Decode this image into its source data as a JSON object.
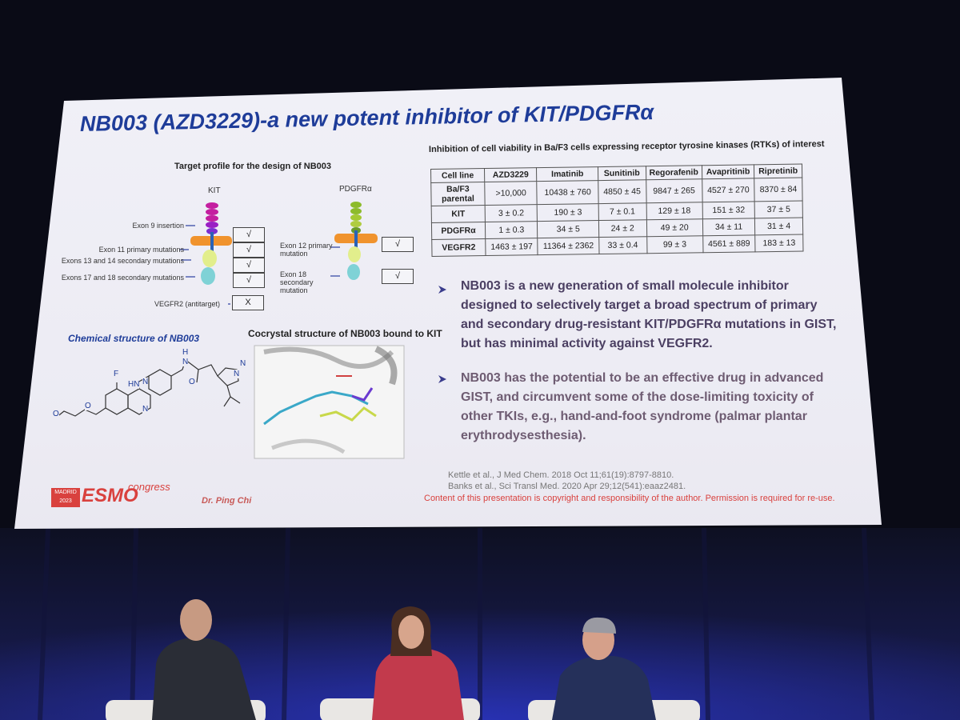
{
  "slide": {
    "title": "NB003 (AZD3229)-a new potent inhibitor of KIT/PDGFRα",
    "target_profile": {
      "title": "Target profile for the design of NB003",
      "kit_label": "KIT",
      "pdgfra_label": "PDGFRα",
      "kit_mutations": [
        {
          "label": "Exon 9 insertion",
          "mark": "√"
        },
        {
          "label": "Exon 11 primary mutations",
          "mark": "√"
        },
        {
          "label": "Exons 13 and 14 secondary mutations",
          "mark": "√"
        },
        {
          "label": "Exons 17 and 18 secondary mutations",
          "mark": "√"
        }
      ],
      "pdgfra_mutations": [
        {
          "label": "Exon 12 primary mutation",
          "mark": "√"
        },
        {
          "label": "Exon 18 secondary mutation",
          "mark": "√"
        }
      ],
      "antitarget": {
        "label": "VEGFR2 (antitarget)",
        "mark": "X"
      }
    },
    "chemical_structure": {
      "title": "Chemical structure of NB003",
      "atoms": [
        "H",
        "N",
        "HN",
        "O",
        "F",
        "N",
        "N",
        "N",
        "N",
        "O",
        "O"
      ]
    },
    "cocrystal": {
      "title": "Cocrystal structure of NB003 bound to KIT"
    },
    "table": {
      "caption": "Inhibition of cell viability in Ba/F3 cells expressing receptor tyrosine kinases (RTKs) of interest",
      "header": [
        "Cell line",
        "AZD3229",
        "Imatinib",
        "Sunitinib",
        "Regorafenib",
        "Avapritinib",
        "Ripretinib"
      ],
      "rows": [
        [
          "Ba/F3 parental",
          ">10,000",
          "10438 ± 760",
          "4850 ± 45",
          "9847 ± 265",
          "4527 ± 270",
          "8370 ± 84"
        ],
        [
          "KIT",
          "3 ± 0.2",
          "190 ± 3",
          "7 ± 0.1",
          "129 ± 18",
          "151 ± 32",
          "37 ± 5"
        ],
        [
          "PDGFRα",
          "1 ± 0.3",
          "34 ± 5",
          "24 ± 2",
          "49 ± 20",
          "34 ± 11",
          "31 ± 4"
        ],
        [
          "VEGFR2",
          "1463 ± 197",
          "11364 ± 2362",
          "33 ± 0.4",
          "99 ± 3",
          "4561 ± 889",
          "183 ± 13"
        ]
      ]
    },
    "bullets": [
      "NB003 is a new generation of small molecule inhibitor designed to selectively target a broad spectrum of primary and secondary drug-resistant KIT/PDGFRα mutations in GIST, but has minimal activity against VEGFR2.",
      "NB003 has the potential to be an effective drug in advanced GIST, and circumvent some of the  dose-limiting toxicity of other TKIs, e.g., hand-and-foot syndrome (palmar plantar erythrodysesthesia)."
    ],
    "references": [
      "Kettle et al., J Med Chem. 2018 Oct 11;61(19):8797-8810.",
      "Banks et al., Sci Transl Med. 2020 Apr 29;12(541):eaaz2481."
    ],
    "copyright": "Content of this presentation is copyright and responsibility of the author. Permission is required for re-use.",
    "footer": {
      "city": "MADRID",
      "year": "2023",
      "logo": "ESMO",
      "congress": "congress",
      "presenter": "Dr. Ping Chi"
    }
  }
}
